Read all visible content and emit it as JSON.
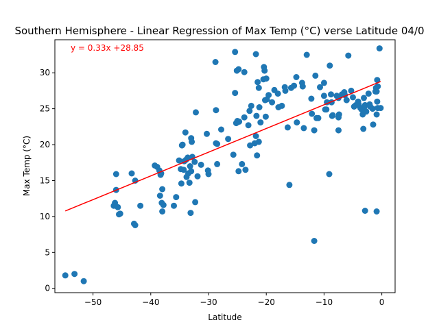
{
  "chart_data": {
    "type": "scatter",
    "title": "Southern Hemisphere - Linear Regression of Max Temp (°C) verse Latitude 04/0",
    "xlabel": "Latitude",
    "ylabel": "Max Temp (°C)",
    "xlim": [
      -56.6,
      2.3
    ],
    "ylim": [
      -0.6,
      34.6
    ],
    "xticks": [
      -50,
      -40,
      -30,
      -20,
      -10,
      0
    ],
    "yticks": [
      0,
      5,
      10,
      15,
      20,
      25,
      30
    ],
    "grid": false,
    "colors": {
      "points": "#1f77b4",
      "regression": "#ff0000",
      "annotation": "#ff0000"
    },
    "annotation": "y = 0.33x +28.85",
    "regression": {
      "slope": 0.33,
      "intercept": 28.85,
      "x_range": [
        -54.8,
        -0.2
      ]
    },
    "points": [
      [
        -54.8,
        1.8
      ],
      [
        -53.2,
        2.0
      ],
      [
        -51.6,
        1.0
      ],
      [
        -46.0,
        15.9
      ],
      [
        -46.0,
        13.7
      ],
      [
        -46.2,
        11.9
      ],
      [
        -46.4,
        11.5
      ],
      [
        -45.7,
        11.3
      ],
      [
        -45.3,
        10.4
      ],
      [
        -45.5,
        10.3
      ],
      [
        -43.3,
        16.0
      ],
      [
        -42.7,
        15.0
      ],
      [
        -42.9,
        9.0
      ],
      [
        -42.7,
        8.8
      ],
      [
        -41.8,
        11.5
      ],
      [
        -39.3,
        17.1
      ],
      [
        -38.9,
        16.9
      ],
      [
        -38.5,
        16.4
      ],
      [
        -38.3,
        15.8
      ],
      [
        -38.2,
        16.0
      ],
      [
        -38.0,
        13.8
      ],
      [
        -38.1,
        11.9
      ],
      [
        -37.8,
        11.6
      ],
      [
        -38.4,
        12.9
      ],
      [
        -38.0,
        10.7
      ],
      [
        -36.0,
        11.5
      ],
      [
        -35.6,
        12.7
      ],
      [
        -35.1,
        17.8
      ],
      [
        -34.6,
        19.9
      ],
      [
        -34.5,
        20.0
      ],
      [
        -34.8,
        16.6
      ],
      [
        -34.3,
        16.5
      ],
      [
        -34.7,
        14.6
      ],
      [
        -34.0,
        21.7
      ],
      [
        -33.9,
        17.9
      ],
      [
        -34.2,
        17.7
      ],
      [
        -33.6,
        18.2
      ],
      [
        -33.8,
        15.5
      ],
      [
        -33.5,
        16.0
      ],
      [
        -33.2,
        17.0
      ],
      [
        -33.0,
        16.3
      ],
      [
        -33.3,
        14.7
      ],
      [
        -33.1,
        10.5
      ],
      [
        -33.0,
        20.9
      ],
      [
        -32.9,
        20.4
      ],
      [
        -32.8,
        18.3
      ],
      [
        -32.4,
        17.6
      ],
      [
        -32.2,
        24.5
      ],
      [
        -31.9,
        15.6
      ],
      [
        -32.3,
        12.0
      ],
      [
        -31.3,
        17.2
      ],
      [
        -30.3,
        21.5
      ],
      [
        -30.1,
        16.4
      ],
      [
        -30.0,
        15.9
      ],
      [
        -28.8,
        31.5
      ],
      [
        -28.7,
        24.8
      ],
      [
        -28.7,
        20.2
      ],
      [
        -28.5,
        20.1
      ],
      [
        -28.5,
        17.3
      ],
      [
        -27.8,
        22.1
      ],
      [
        -26.6,
        20.8
      ],
      [
        -25.7,
        18.6
      ],
      [
        -25.4,
        32.9
      ],
      [
        -25.1,
        30.3
      ],
      [
        -24.8,
        30.5
      ],
      [
        -25.4,
        27.2
      ],
      [
        -25.0,
        23.3
      ],
      [
        -24.7,
        23.2
      ],
      [
        -25.2,
        23.0
      ],
      [
        -24.8,
        16.3
      ],
      [
        -24.2,
        17.3
      ],
      [
        -23.8,
        30.1
      ],
      [
        -23.8,
        23.8
      ],
      [
        -23.6,
        16.5
      ],
      [
        -23.1,
        22.7
      ],
      [
        -22.9,
        24.7
      ],
      [
        -22.6,
        25.4
      ],
      [
        -22.8,
        19.9
      ],
      [
        -21.8,
        32.6
      ],
      [
        -21.8,
        21.2
      ],
      [
        -21.5,
        28.7
      ],
      [
        -21.3,
        27.9
      ],
      [
        -21.2,
        25.2
      ],
      [
        -21.7,
        24.0
      ],
      [
        -21.0,
        23.1
      ],
      [
        -21.3,
        20.4
      ],
      [
        -21.6,
        18.5
      ],
      [
        -22.0,
        20.2
      ],
      [
        -20.4,
        30.8
      ],
      [
        -20.3,
        30.3
      ],
      [
        -20.5,
        29.1
      ],
      [
        -20.0,
        29.2
      ],
      [
        -19.9,
        26.3
      ],
      [
        -19.6,
        26.9
      ],
      [
        -20.2,
        26.2
      ],
      [
        -20.1,
        23.9
      ],
      [
        -19.0,
        25.9
      ],
      [
        -18.6,
        27.6
      ],
      [
        -18.0,
        27.1
      ],
      [
        -17.9,
        25.2
      ],
      [
        -17.3,
        25.4
      ],
      [
        -16.8,
        28.0
      ],
      [
        -16.7,
        27.5
      ],
      [
        -16.3,
        22.4
      ],
      [
        -16.0,
        14.4
      ],
      [
        -15.7,
        27.9
      ],
      [
        -15.2,
        28.2
      ],
      [
        -14.8,
        29.4
      ],
      [
        -14.7,
        23.1
      ],
      [
        -13.8,
        28.6
      ],
      [
        -13.7,
        28.1
      ],
      [
        -13.5,
        22.3
      ],
      [
        -13.0,
        32.5
      ],
      [
        -12.2,
        26.4
      ],
      [
        -12.1,
        24.3
      ],
      [
        -11.7,
        22.0
      ],
      [
        -11.5,
        29.6
      ],
      [
        -11.3,
        23.7
      ],
      [
        -11.0,
        23.7
      ],
      [
        -11.7,
        6.6
      ],
      [
        -10.7,
        28.0
      ],
      [
        -10.0,
        28.6
      ],
      [
        -10.0,
        26.8
      ],
      [
        -9.8,
        24.9
      ],
      [
        -9.5,
        25.9
      ],
      [
        -9.6,
        24.9
      ],
      [
        -9.0,
        31.0
      ],
      [
        -9.1,
        15.9
      ],
      [
        -8.8,
        27.0
      ],
      [
        -8.7,
        25.9
      ],
      [
        -8.6,
        24.0
      ],
      [
        -8.5,
        24.1
      ],
      [
        -7.8,
        26.8
      ],
      [
        -7.5,
        26.5
      ],
      [
        -7.4,
        24.2
      ],
      [
        -7.5,
        23.8
      ],
      [
        -7.5,
        22.0
      ],
      [
        -6.9,
        27.0
      ],
      [
        -6.5,
        27.3
      ],
      [
        -6.4,
        26.9
      ],
      [
        -6.1,
        26.2
      ],
      [
        -5.8,
        32.4
      ],
      [
        -5.3,
        27.5
      ],
      [
        -5.0,
        26.6
      ],
      [
        -4.8,
        25.3
      ],
      [
        -4.5,
        25.5
      ],
      [
        -4.1,
        26.0
      ],
      [
        -4.0,
        25.6
      ],
      [
        -3.7,
        25.1
      ],
      [
        -3.5,
        24.9
      ],
      [
        -3.3,
        24.2
      ],
      [
        -3.1,
        26.5
      ],
      [
        -3.0,
        25.3
      ],
      [
        -2.9,
        25.5
      ],
      [
        -2.7,
        24.6
      ],
      [
        -3.2,
        22.2
      ],
      [
        -2.9,
        10.8
      ],
      [
        -2.3,
        27.1
      ],
      [
        -2.1,
        25.6
      ],
      [
        -2.0,
        25.3
      ],
      [
        -1.6,
        25.0
      ],
      [
        -1.5,
        22.8
      ],
      [
        -1.1,
        27.4
      ],
      [
        -1.0,
        27.9
      ],
      [
        -0.9,
        27.4
      ],
      [
        -0.8,
        26.0
      ],
      [
        -0.8,
        29.0
      ],
      [
        -0.7,
        28.1
      ],
      [
        -0.7,
        25.1
      ],
      [
        -0.9,
        24.2
      ],
      [
        -0.9,
        10.7
      ],
      [
        -0.4,
        33.4
      ],
      [
        -0.2,
        25.1
      ]
    ]
  }
}
